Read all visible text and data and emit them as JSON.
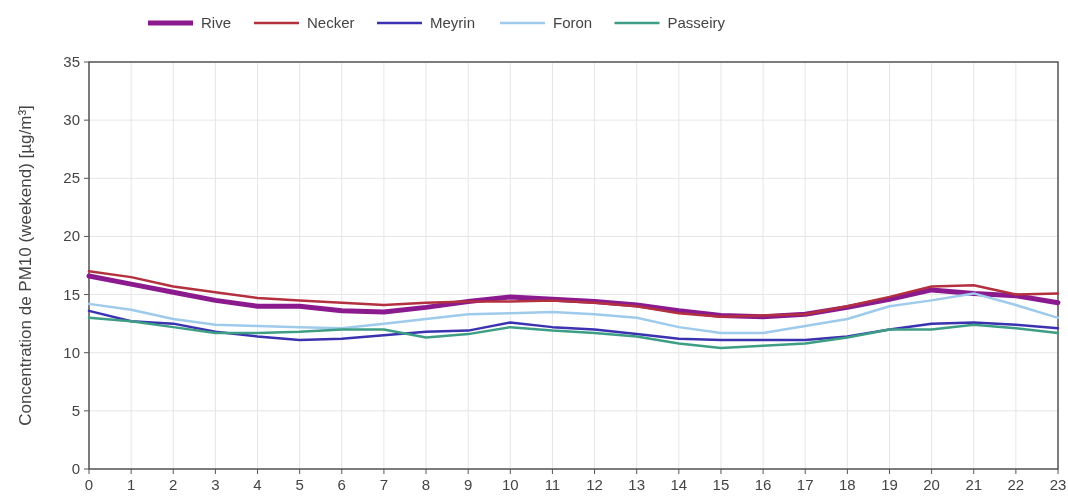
{
  "chart_data": {
    "type": "line",
    "ylabel": "Concentration de PM10 (weekend) [µg/m³]",
    "x": [
      0,
      1,
      2,
      3,
      4,
      5,
      6,
      7,
      8,
      9,
      10,
      11,
      12,
      13,
      14,
      15,
      16,
      17,
      18,
      19,
      20,
      21,
      22,
      23
    ],
    "xlim": [
      0,
      23
    ],
    "xticks": [
      0,
      1,
      2,
      3,
      4,
      5,
      6,
      7,
      8,
      9,
      10,
      11,
      12,
      13,
      14,
      15,
      16,
      17,
      18,
      19,
      20,
      21,
      22,
      23
    ],
    "ylim": [
      0,
      35
    ],
    "yticks": [
      0,
      5,
      10,
      15,
      20,
      25,
      30,
      35
    ],
    "grid": true,
    "legend": "top",
    "line_style": "solid",
    "marker": "none",
    "series": [
      {
        "name": "Rive",
        "color": "#8b1a8f",
        "values": [
          16.6,
          15.9,
          15.2,
          14.5,
          14.0,
          14.0,
          13.6,
          13.5,
          13.9,
          14.4,
          14.8,
          14.6,
          14.4,
          14.1,
          13.6,
          13.2,
          13.1,
          13.3,
          13.9,
          14.6,
          15.4,
          15.1,
          14.9,
          14.3
        ]
      },
      {
        "name": "Necker",
        "color": "#b3303f",
        "values": [
          17.0,
          16.5,
          15.7,
          15.2,
          14.7,
          14.5,
          14.3,
          14.1,
          14.3,
          14.4,
          14.4,
          14.5,
          14.3,
          14.0,
          13.4,
          13.1,
          13.2,
          13.3,
          14.0,
          14.8,
          15.7,
          15.8,
          15.0,
          15.1
        ]
      },
      {
        "name": "Meyrin",
        "color": "#3a32b0",
        "values": [
          13.6,
          12.7,
          12.5,
          11.8,
          11.4,
          11.1,
          11.2,
          11.5,
          11.8,
          11.9,
          12.6,
          12.2,
          12.0,
          11.6,
          11.2,
          11.1,
          11.1,
          11.1,
          11.4,
          12.0,
          12.5,
          12.6,
          12.4,
          12.1
        ]
      },
      {
        "name": "Foron",
        "color": "#9ecbec",
        "values": [
          14.2,
          13.7,
          12.9,
          12.4,
          12.3,
          12.2,
          12.1,
          12.5,
          12.9,
          13.3,
          13.4,
          13.5,
          13.3,
          13.0,
          12.2,
          11.7,
          11.7,
          12.3,
          12.9,
          14.0,
          14.5,
          15.1,
          14.1,
          13.0
        ]
      },
      {
        "name": "Passeiry",
        "color": "#3d9e85",
        "values": [
          13.0,
          12.7,
          12.2,
          11.7,
          11.7,
          11.8,
          12.0,
          12.0,
          11.3,
          11.6,
          12.2,
          11.9,
          11.7,
          11.4,
          10.8,
          10.4,
          10.6,
          10.8,
          11.3,
          12.0,
          12.0,
          12.4,
          12.1,
          11.7
        ]
      }
    ]
  }
}
